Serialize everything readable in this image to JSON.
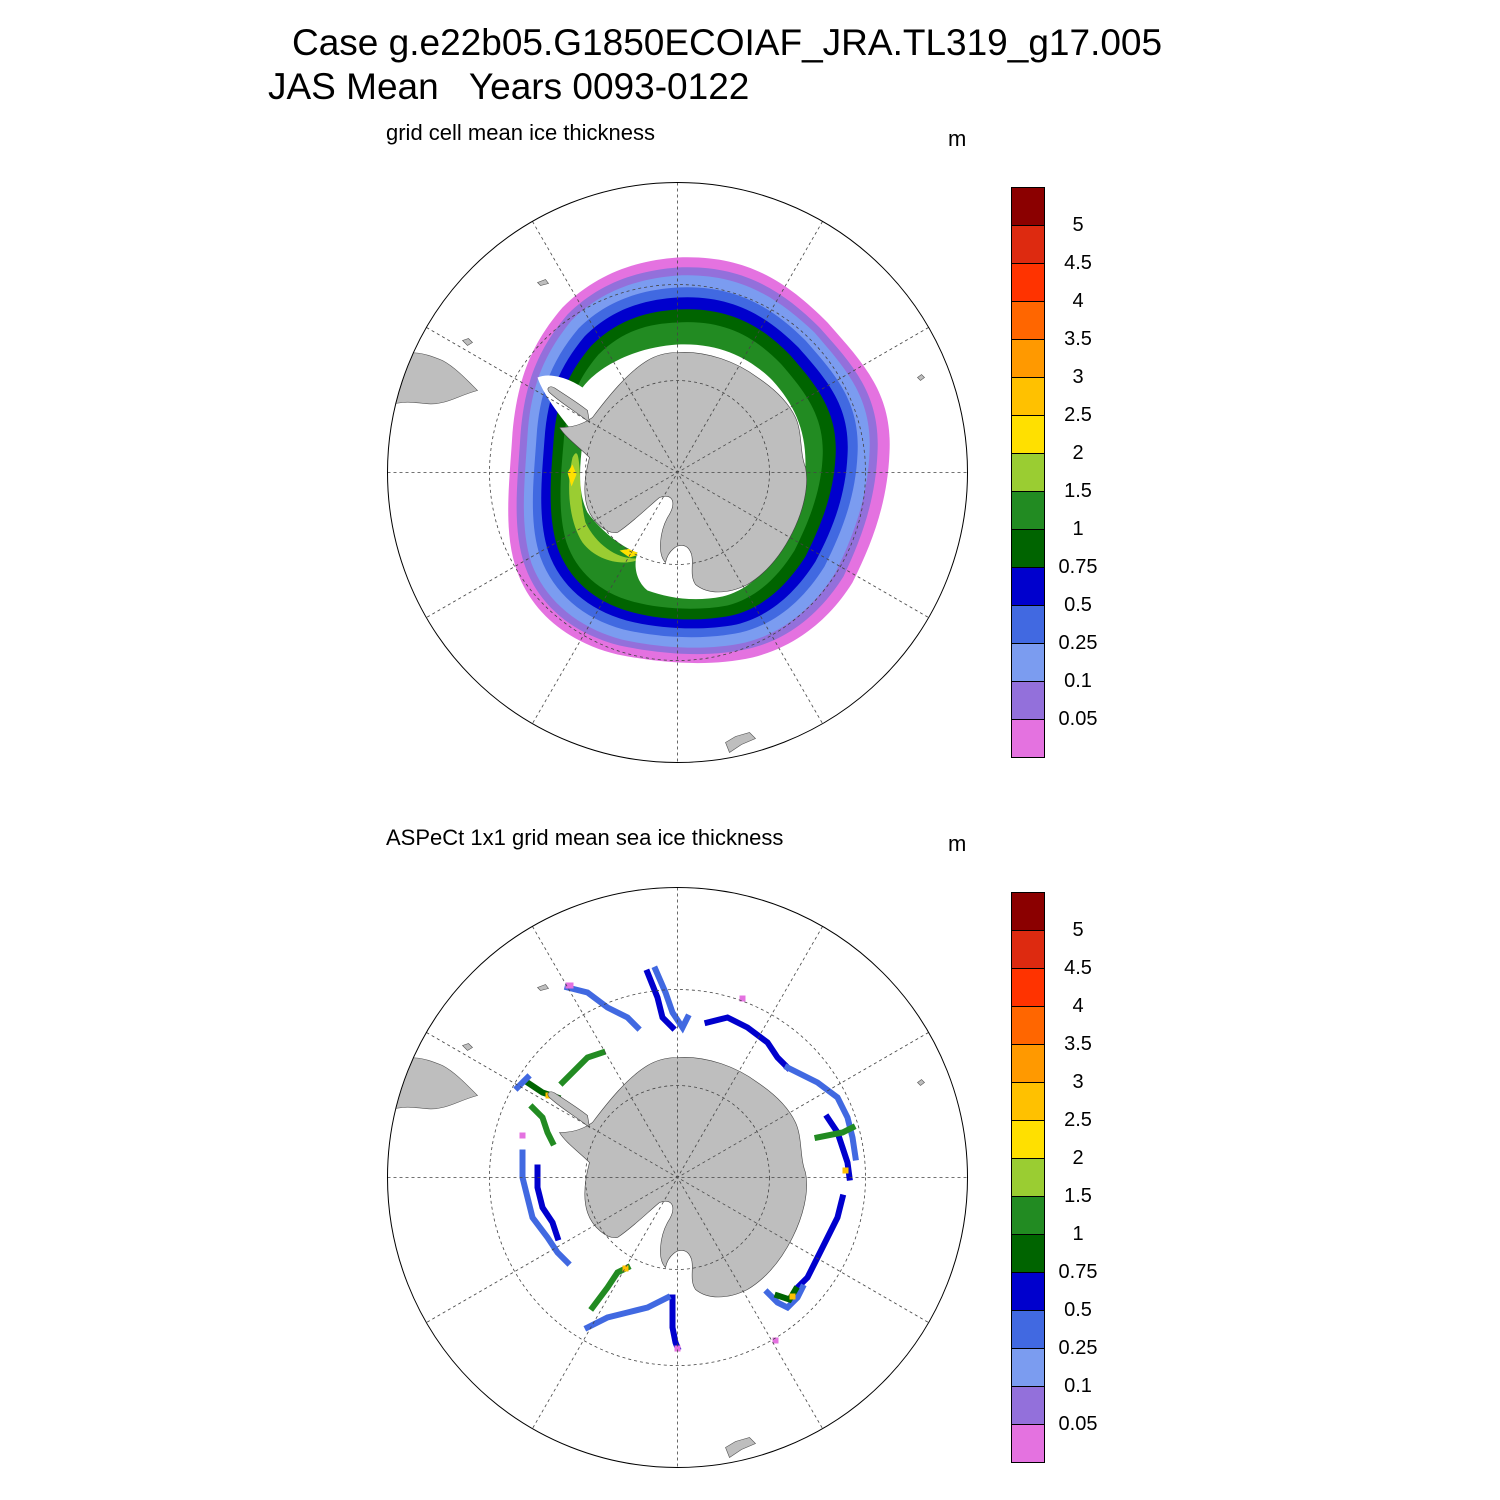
{
  "header": {
    "title_line1": "Case g.e22b05.G1850ECOIAF_JRA.TL319_g17.005",
    "title_line2": "JAS Mean   Years 0093-0122"
  },
  "panels": [
    {
      "subtitle": "grid cell mean ice thickness",
      "units": "m",
      "kind": "model"
    },
    {
      "subtitle": "ASPeCt 1x1 grid mean sea ice thickness",
      "units": "m",
      "kind": "observations"
    }
  ],
  "colorbar": {
    "colors": [
      "#e472e0",
      "#9370db",
      "#7b9cf0",
      "#4169e1",
      "#0000cd",
      "#006400",
      "#228b22",
      "#9acd32",
      "#ffe000",
      "#ffc100",
      "#ff9900",
      "#ff6600",
      "#ff3300",
      "#dd2a10",
      "#8b0000"
    ],
    "labels": [
      "0.05",
      "0.1",
      "0.25",
      "0.5",
      "0.75",
      "1",
      "1.5",
      "2",
      "2.5",
      "3",
      "3.5",
      "4",
      "4.5",
      "5"
    ]
  },
  "land_color": "#bebebe"
}
